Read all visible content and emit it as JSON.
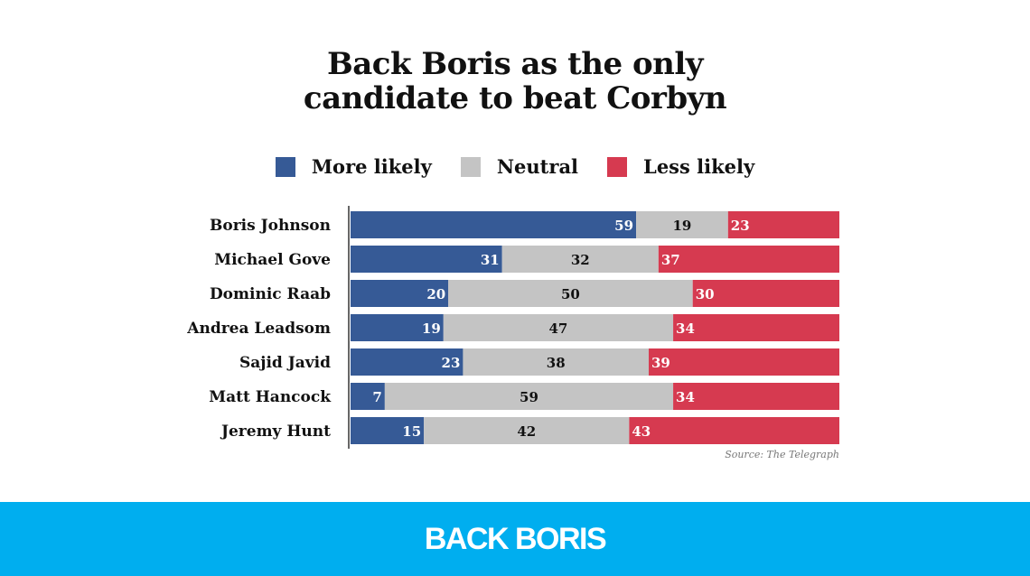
{
  "chart_data": {
    "type": "bar",
    "orientation": "horizontal",
    "stacked": true,
    "title": "Back Boris as the only candidate to beat Corbyn",
    "title_lines": [
      "Back Boris as the only",
      "candidate to beat Corbyn"
    ],
    "categories": [
      "Boris Johnson",
      "Michael Gove",
      "Dominic Raab",
      "Andrea Leadsom",
      "Sajid Javid",
      "Matt Hancock",
      "Jeremy Hunt"
    ],
    "series": [
      {
        "name": "More likely",
        "color": "#365a96",
        "values": [
          59,
          31,
          20,
          19,
          23,
          7,
          15
        ]
      },
      {
        "name": "Neutral",
        "color": "#c4c4c4",
        "values": [
          19,
          32,
          50,
          47,
          38,
          59,
          42
        ]
      },
      {
        "name": "Less likely",
        "color": "#d63a50",
        "values": [
          23,
          37,
          30,
          34,
          39,
          34,
          43
        ]
      }
    ],
    "legend_position": "top",
    "grid": false,
    "xlabel": "",
    "ylabel": "",
    "source": "Source: The Telegraph"
  },
  "footer": {
    "logo_text": "BACK BORIS",
    "color": "#00aeef"
  }
}
